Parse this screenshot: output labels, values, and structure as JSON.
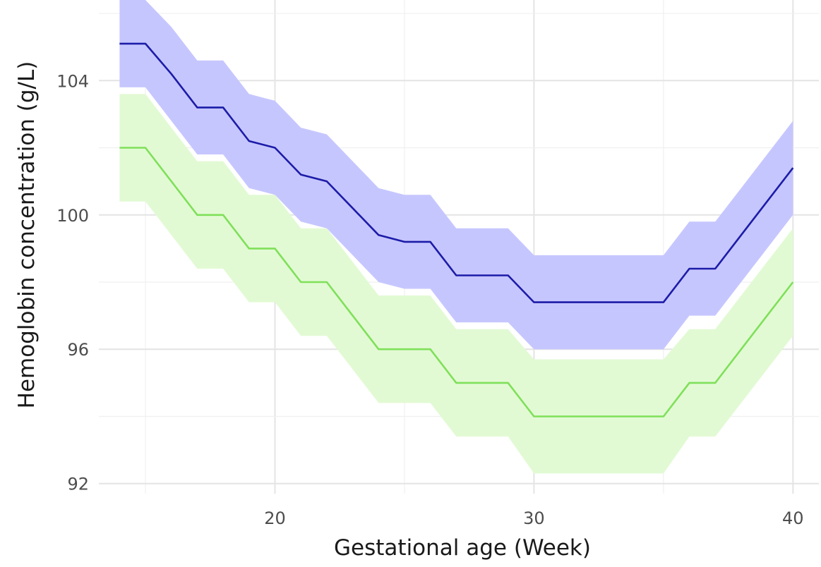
{
  "chart_data": {
    "type": "line",
    "title": "",
    "xlabel": "Gestational age (Week)",
    "ylabel": "Hemoglobin concentration (g/L)",
    "xlim": [
      13.2,
      41.0
    ],
    "ylim": [
      91.7,
      106.4
    ],
    "x_ticks": [
      20,
      30,
      40
    ],
    "x_tick_labels": [
      "20",
      "30",
      "40"
    ],
    "y_ticks": [
      92,
      96,
      100,
      104
    ],
    "y_tick_labels": [
      "92",
      "96",
      "100",
      "104"
    ],
    "grid": true,
    "legend": "none",
    "x": [
      14,
      15,
      16,
      17,
      18,
      19,
      20,
      21,
      22,
      23,
      24,
      25,
      26,
      27,
      28,
      29,
      30,
      31,
      32,
      33,
      34,
      35,
      36,
      37,
      38,
      39,
      40
    ],
    "series": [
      {
        "color": "#1c1ca8",
        "band_color": "#c6c6ff",
        "values": [
          105.1,
          105.1,
          104.2,
          103.2,
          103.2,
          102.2,
          102.0,
          101.2,
          101.0,
          100.2,
          99.4,
          99.2,
          99.2,
          98.2,
          98.2,
          98.2,
          97.4,
          97.4,
          97.4,
          97.4,
          97.4,
          97.4,
          98.4,
          98.4,
          99.4,
          100.4,
          101.4
        ],
        "lower": [
          103.8,
          103.8,
          102.8,
          101.8,
          101.8,
          100.8,
          100.6,
          99.8,
          99.6,
          98.8,
          98.0,
          97.8,
          97.8,
          96.8,
          96.8,
          96.8,
          96.0,
          96.0,
          96.0,
          96.0,
          96.0,
          96.0,
          97.0,
          97.0,
          98.0,
          99.0,
          100.0
        ],
        "upper": [
          106.4,
          106.4,
          105.6,
          104.6,
          104.6,
          103.6,
          103.4,
          102.6,
          102.4,
          101.6,
          100.8,
          100.6,
          100.6,
          99.6,
          99.6,
          99.6,
          98.8,
          98.8,
          98.8,
          98.8,
          98.8,
          98.8,
          99.8,
          99.8,
          100.8,
          101.8,
          102.8
        ]
      },
      {
        "color": "#7fe05a",
        "band_color": "#e2fad4",
        "values": [
          102.0,
          102.0,
          101.0,
          100.0,
          100.0,
          99.0,
          99.0,
          98.0,
          98.0,
          97.0,
          96.0,
          96.0,
          96.0,
          95.0,
          95.0,
          95.0,
          94.0,
          94.0,
          94.0,
          94.0,
          94.0,
          94.0,
          95.0,
          95.0,
          96.0,
          97.0,
          98.0
        ],
        "lower": [
          100.4,
          100.4,
          99.4,
          98.4,
          98.4,
          97.4,
          97.4,
          96.4,
          96.4,
          95.4,
          94.4,
          94.4,
          94.4,
          93.4,
          93.4,
          93.4,
          92.3,
          92.3,
          92.3,
          92.3,
          92.3,
          92.3,
          93.4,
          93.4,
          94.4,
          95.4,
          96.4
        ],
        "upper": [
          103.6,
          103.6,
          102.6,
          101.6,
          101.6,
          100.6,
          100.6,
          99.6,
          99.6,
          98.6,
          97.6,
          97.6,
          97.6,
          96.6,
          96.6,
          96.6,
          95.7,
          95.7,
          95.7,
          95.7,
          95.7,
          95.7,
          96.6,
          96.6,
          97.6,
          98.6,
          99.6
        ]
      }
    ]
  }
}
